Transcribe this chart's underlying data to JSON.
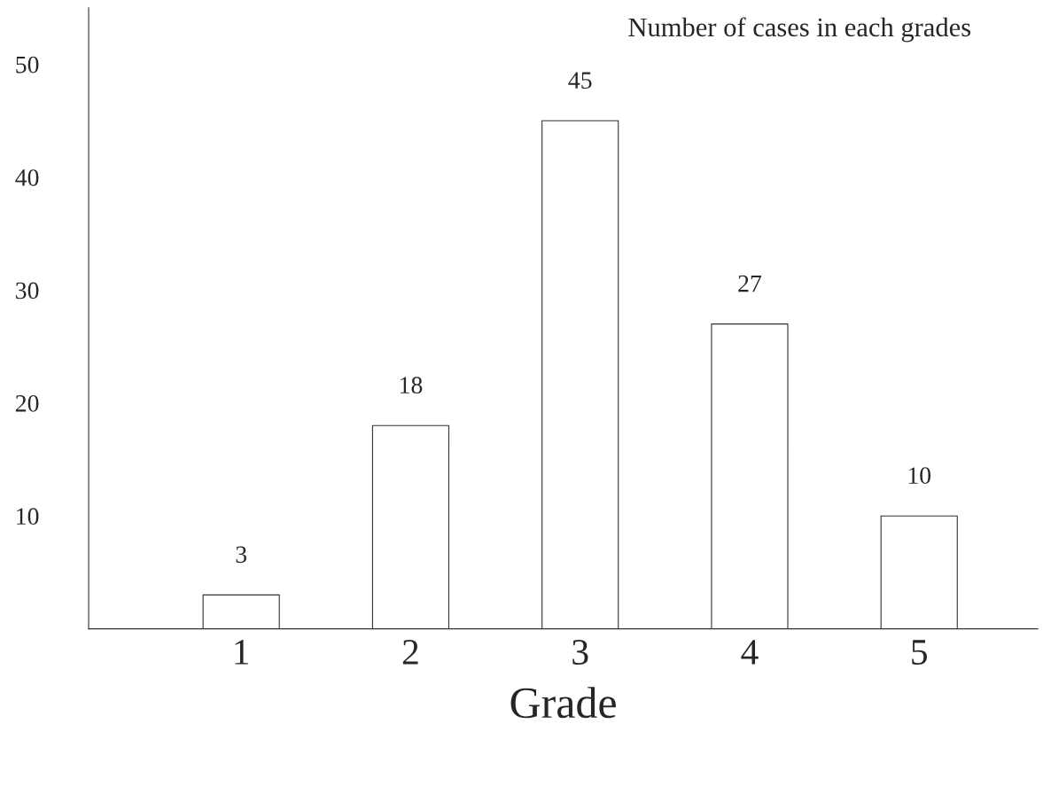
{
  "chart_data": {
    "type": "bar",
    "title": "Number of cases in each grades",
    "xlabel": "Grade",
    "categories": [
      "1",
      "2",
      "3",
      "4",
      "5"
    ],
    "values": [
      3,
      18,
      45,
      27,
      10
    ],
    "color": "#ffffff",
    "ylim": [
      0,
      55
    ],
    "yticks": [
      10,
      20,
      30,
      40,
      50
    ],
    "data_labels": true,
    "grid": false,
    "legend": false
  }
}
